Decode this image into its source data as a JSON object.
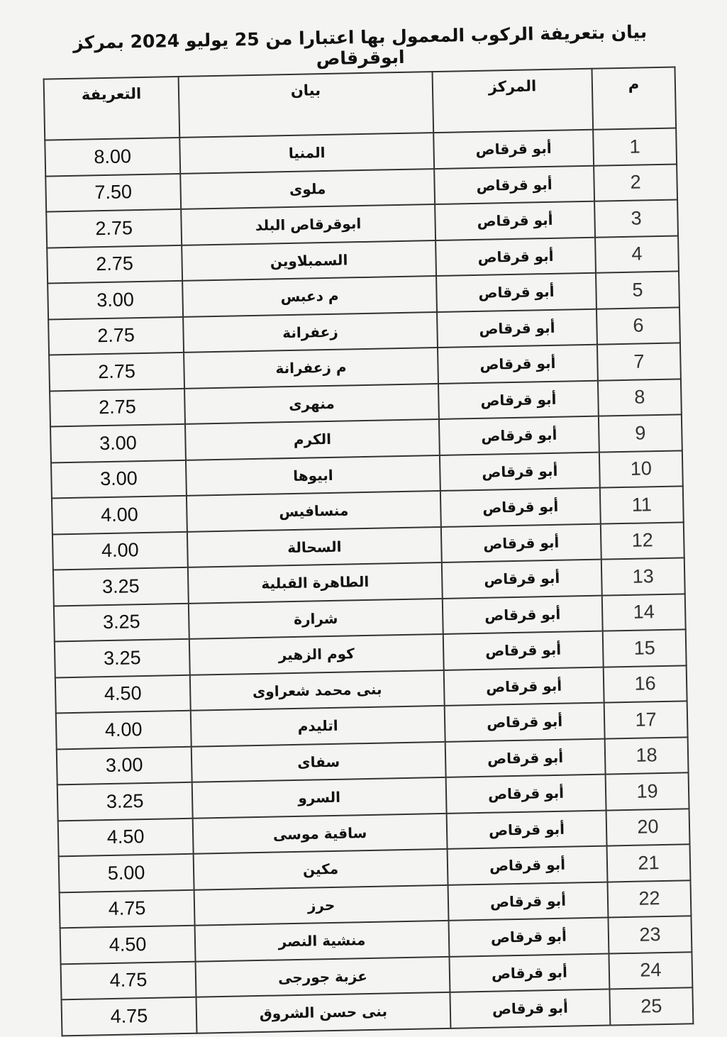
{
  "title": "بيان بتعريفة الركوب المعمول بها اعتبارا من 25 يوليو 2024 بمركز ابوقرقاص",
  "headers": {
    "index": "م",
    "center": "المركز",
    "statement": "بيان",
    "fare": "التعريفة"
  },
  "rows": [
    {
      "n": "1",
      "center": "أبو قرقاص",
      "name": "المنيا",
      "fare": "8.00"
    },
    {
      "n": "2",
      "center": "أبو قرقاص",
      "name": "ملوى",
      "fare": "7.50"
    },
    {
      "n": "3",
      "center": "أبو قرقاص",
      "name": "ابوقرقاص البلد",
      "fare": "2.75"
    },
    {
      "n": "4",
      "center": "أبو قرقاص",
      "name": "السمبلاوين",
      "fare": "2.75"
    },
    {
      "n": "5",
      "center": "أبو قرقاص",
      "name": "م دعبس",
      "fare": "3.00"
    },
    {
      "n": "6",
      "center": "أبو قرقاص",
      "name": "زعفرانة",
      "fare": "2.75"
    },
    {
      "n": "7",
      "center": "أبو قرقاص",
      "name": "م زعفرانة",
      "fare": "2.75"
    },
    {
      "n": "8",
      "center": "أبو قرقاص",
      "name": "منهرى",
      "fare": "2.75"
    },
    {
      "n": "9",
      "center": "أبو قرقاص",
      "name": "الكرم",
      "fare": "3.00"
    },
    {
      "n": "10",
      "center": "أبو قرقاص",
      "name": "ابيوها",
      "fare": "3.00"
    },
    {
      "n": "11",
      "center": "أبو قرقاص",
      "name": "منسافيس",
      "fare": "4.00"
    },
    {
      "n": "12",
      "center": "أبو قرقاص",
      "name": "السحالة",
      "fare": "4.00"
    },
    {
      "n": "13",
      "center": "أبو قرقاص",
      "name": "الطاهرة القبلية",
      "fare": "3.25"
    },
    {
      "n": "14",
      "center": "أبو قرقاص",
      "name": "شرارة",
      "fare": "3.25"
    },
    {
      "n": "15",
      "center": "أبو قرقاص",
      "name": "كوم الزهير",
      "fare": "3.25"
    },
    {
      "n": "16",
      "center": "أبو قرقاص",
      "name": "بنى محمد شعراوى",
      "fare": "4.50"
    },
    {
      "n": "17",
      "center": "أبو قرقاص",
      "name": "اتليدم",
      "fare": "4.00"
    },
    {
      "n": "18",
      "center": "أبو قرقاص",
      "name": "سفاى",
      "fare": "3.00"
    },
    {
      "n": "19",
      "center": "أبو قرقاص",
      "name": "السرو",
      "fare": "3.25"
    },
    {
      "n": "20",
      "center": "أبو قرقاص",
      "name": "ساقية موسى",
      "fare": "4.50"
    },
    {
      "n": "21",
      "center": "أبو قرقاص",
      "name": "مكين",
      "fare": "5.00"
    },
    {
      "n": "22",
      "center": "أبو قرقاص",
      "name": "حرز",
      "fare": "4.75"
    },
    {
      "n": "23",
      "center": "أبو قرقاص",
      "name": "منشية النصر",
      "fare": "4.50"
    },
    {
      "n": "24",
      "center": "أبو قرقاص",
      "name": "عزبة جورجى",
      "fare": "4.75"
    },
    {
      "n": "25",
      "center": "أبو قرقاص",
      "name": "بنى حسن الشروق",
      "fare": "4.75"
    }
  ]
}
